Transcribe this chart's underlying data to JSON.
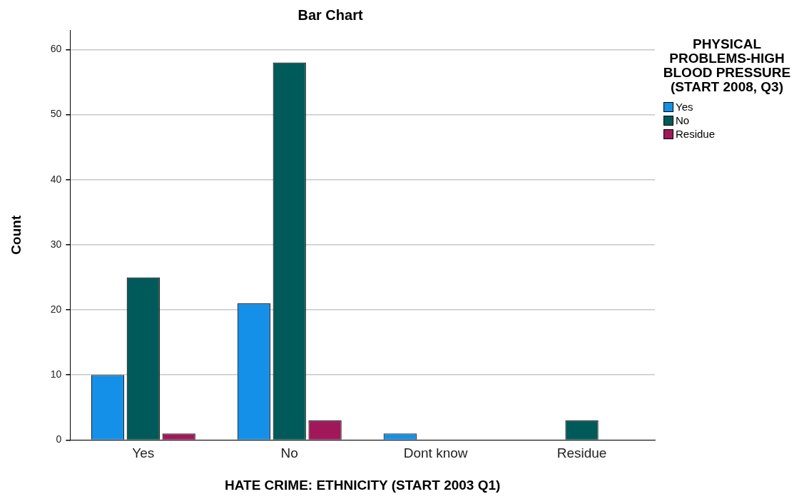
{
  "chart_data": {
    "type": "bar",
    "title": "Bar Chart",
    "xlabel": "HATE CRIME: ETHNICITY (START 2003 Q1)",
    "ylabel": "Count",
    "legend_title": "PHYSICAL PROBLEMS-HIGH BLOOD PRESSURE (START 2008, Q3)",
    "categories": [
      "Yes",
      "No",
      "Dont know",
      "Residue"
    ],
    "series": [
      {
        "name": "Yes",
        "color": "#1490e8",
        "values": [
          10,
          21,
          1,
          null
        ]
      },
      {
        "name": "No",
        "color": "#005a5a",
        "values": [
          25,
          58,
          null,
          3
        ]
      },
      {
        "name": "Residue",
        "color": "#a0185a",
        "values": [
          1,
          3,
          null,
          null
        ]
      }
    ],
    "ylim": [
      0,
      63
    ],
    "yticks": [
      0,
      10,
      20,
      30,
      40,
      50,
      60
    ],
    "grid": "y",
    "legend": "top right"
  }
}
